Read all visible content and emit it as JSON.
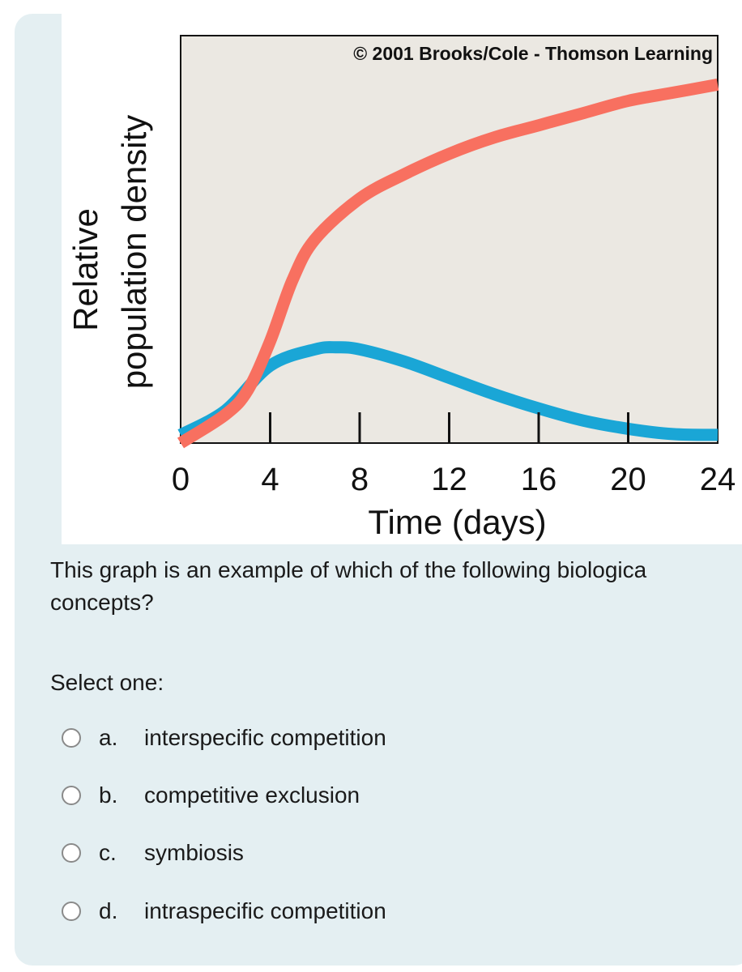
{
  "chart_data": {
    "type": "line",
    "copyright": "© 2001 Brooks/Cole - Thomson Learning",
    "xlabel": "Time (days)",
    "ylabel_lines": [
      "Relative",
      "population density"
    ],
    "x_ticks": [
      "0",
      "4",
      "8",
      "12",
      "16",
      "20",
      "24"
    ],
    "xlim": [
      0,
      24
    ],
    "ylim": [
      0,
      1
    ],
    "series": [
      {
        "color": "#f87060",
        "x": [
          0,
          2,
          3,
          4,
          5,
          6,
          8,
          10,
          12,
          14,
          16,
          18,
          20,
          22,
          24
        ],
        "y": [
          0.0,
          0.07,
          0.13,
          0.25,
          0.4,
          0.5,
          0.6,
          0.66,
          0.71,
          0.75,
          0.78,
          0.81,
          0.84,
          0.86,
          0.88
        ]
      },
      {
        "color": "#1aa6d6",
        "x": [
          0,
          2,
          4,
          6,
          7,
          8,
          10,
          12,
          14,
          16,
          18,
          20,
          22,
          24
        ],
        "y": [
          0.02,
          0.08,
          0.19,
          0.23,
          0.235,
          0.23,
          0.2,
          0.16,
          0.12,
          0.085,
          0.055,
          0.035,
          0.022,
          0.02
        ]
      }
    ]
  },
  "question": {
    "text": "This graph is an example of which of the following biologica concepts?",
    "select_label": "Select one:",
    "options": [
      {
        "letter": "a.",
        "text": "interspecific competition"
      },
      {
        "letter": "b.",
        "text": "competitive exclusion"
      },
      {
        "letter": "c.",
        "text": "symbiosis"
      },
      {
        "letter": "d.",
        "text": "intraspecific competition"
      }
    ]
  }
}
